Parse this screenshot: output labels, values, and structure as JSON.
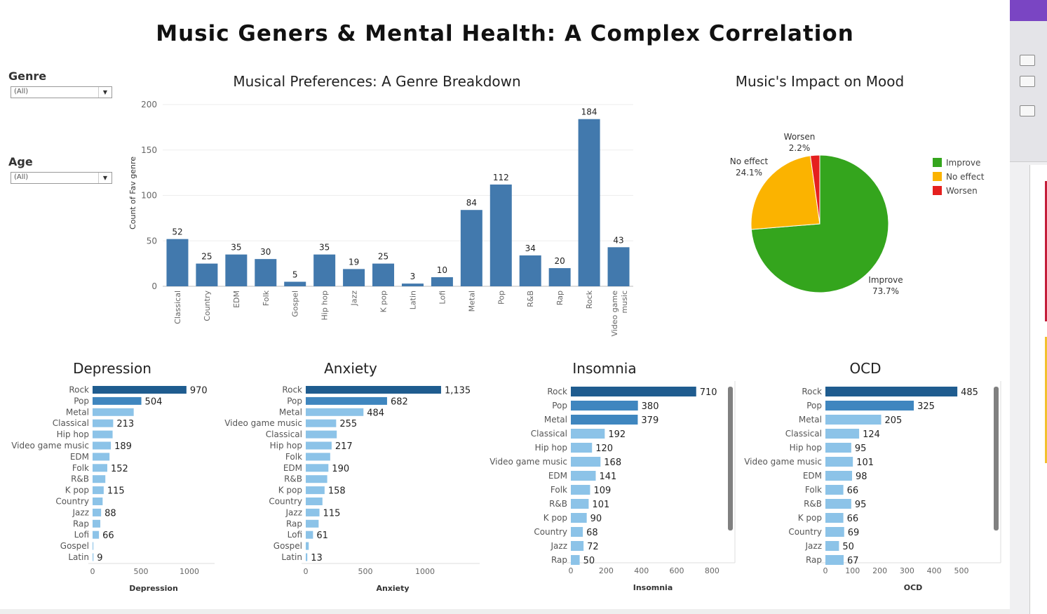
{
  "title": "Music Geners & Mental Health: A Complex Correlation",
  "filters": [
    {
      "label": "Genre",
      "value": "(All)"
    },
    {
      "label": "Age",
      "value": "(All)"
    }
  ],
  "chart_data": [
    {
      "id": "genre",
      "type": "bar",
      "title": "Musical Preferences: A Genre Breakdown",
      "ylabel": "Count of Fav genre",
      "ylim": [
        0,
        200
      ],
      "yticks": [
        0,
        50,
        100,
        150,
        200
      ],
      "categories": [
        "Classical",
        "Country",
        "EDM",
        "Folk",
        "Gospel",
        "Hip hop",
        "Jazz",
        "K pop",
        "Latin",
        "Lofi",
        "Metal",
        "Pop",
        "R&B",
        "Rap",
        "Rock",
        "Video game music"
      ],
      "values": [
        52,
        25,
        35,
        30,
        5,
        35,
        19,
        25,
        3,
        10,
        84,
        112,
        34,
        20,
        184,
        43
      ],
      "color": "#4279ad"
    },
    {
      "id": "mood",
      "type": "pie",
      "title": "Music's Impact on Mood",
      "slices": [
        {
          "label": "Improve",
          "value": 73.7,
          "pct_label": "73.7%",
          "color": "#34a51d"
        },
        {
          "label": "No effect",
          "value": 24.1,
          "pct_label": "24.1%",
          "color": "#fbb300"
        },
        {
          "label": "Worsen",
          "value": 2.2,
          "pct_label": "2.2%",
          "color": "#e5201e"
        }
      ]
    },
    {
      "id": "depression",
      "type": "bar",
      "orientation": "horizontal",
      "title": "Depression",
      "xlabel": "Depression",
      "xlim": [
        0,
        1000
      ],
      "xticks": [
        0,
        500,
        1000
      ],
      "categories": [
        "Rock",
        "Pop",
        "Metal",
        "Classical",
        "Hip hop",
        "Video game music",
        "EDM",
        "Folk",
        "R&B",
        "K pop",
        "Country",
        "Jazz",
        "Rap",
        "Lofi",
        "Gospel",
        "Latin"
      ],
      "values": [
        970,
        504,
        425,
        213,
        207,
        189,
        175,
        152,
        132,
        115,
        104,
        88,
        80,
        66,
        8,
        9
      ],
      "labeled": [
        "Rock",
        "Pop",
        "Classical",
        "Video game music",
        "Folk",
        "K pop",
        "Jazz",
        "Lofi",
        "Latin"
      ]
    },
    {
      "id": "anxiety",
      "type": "bar",
      "orientation": "horizontal",
      "title": "Anxiety",
      "xlabel": "Anxiety",
      "xlim": [
        0,
        1000
      ],
      "xticks": [
        0,
        500,
        1000
      ],
      "tick_labels": [
        "0",
        "500",
        "1000"
      ],
      "categories": [
        "Rock",
        "Pop",
        "Metal",
        "Video game music",
        "Classical",
        "Hip hop",
        "Folk",
        "EDM",
        "R&B",
        "K pop",
        "Country",
        "Jazz",
        "Rap",
        "Lofi",
        "Gospel",
        "Latin"
      ],
      "values": [
        1135,
        682,
        484,
        255,
        260,
        217,
        205,
        190,
        180,
        158,
        140,
        115,
        108,
        61,
        25,
        13
      ],
      "value_labels": [
        "1,135",
        "682",
        "484",
        "255",
        "",
        "217",
        "",
        "190",
        "",
        "158",
        "",
        "115",
        "",
        "61",
        "",
        "13"
      ],
      "labeled": [
        "Rock",
        "Pop",
        "Metal",
        "Video game music",
        "Hip hop",
        "EDM",
        "K pop",
        "Jazz",
        "Lofi",
        "Latin"
      ]
    },
    {
      "id": "insomnia",
      "type": "bar",
      "orientation": "horizontal",
      "title": "Insomnia",
      "xlabel": "Insomnia",
      "xlim": [
        0,
        850
      ],
      "xticks": [
        0,
        200,
        400,
        600,
        800
      ],
      "categories": [
        "Rock",
        "Pop",
        "Metal",
        "Classical",
        "Hip hop",
        "Video game music",
        "EDM",
        "Folk",
        "R&B",
        "K pop",
        "Country",
        "Jazz",
        "Rap"
      ],
      "values": [
        710,
        380,
        379,
        192,
        120,
        168,
        141,
        109,
        101,
        90,
        68,
        72,
        50
      ],
      "labeled": [
        "Rock",
        "Pop",
        "Metal",
        "Classical",
        "Hip hop",
        "Video game music",
        "EDM",
        "Folk",
        "R&B",
        "K pop",
        "Country",
        "Jazz",
        "Rap"
      ]
    },
    {
      "id": "ocd",
      "type": "bar",
      "orientation": "horizontal",
      "title": "OCD",
      "xlabel": "OCD",
      "xlim": [
        0,
        580
      ],
      "xticks": [
        0,
        100,
        200,
        300,
        400,
        500
      ],
      "categories": [
        "Rock",
        "Pop",
        "Metal",
        "Classical",
        "Hip hop",
        "Video game music",
        "EDM",
        "Folk",
        "R&B",
        "K pop",
        "Country",
        "Jazz",
        "Rap"
      ],
      "values": [
        485,
        325,
        205,
        124,
        95,
        101,
        98,
        66,
        95,
        66,
        69,
        50,
        67
      ],
      "labeled": [
        "Rock",
        "Pop",
        "Metal",
        "Classical",
        "Hip hop",
        "Video game music",
        "EDM",
        "Folk",
        "R&B",
        "K pop",
        "Country",
        "Jazz",
        "Rap"
      ]
    }
  ]
}
